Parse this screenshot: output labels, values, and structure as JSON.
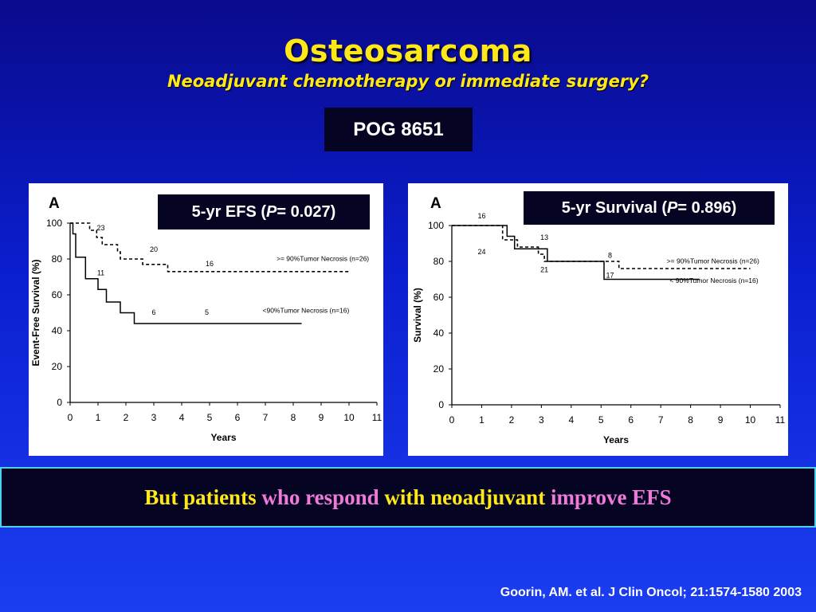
{
  "slide": {
    "title": "Osteosarcoma",
    "subtitle": "Neoadjuvant chemotherapy or immediate surgery?",
    "study_label": "POG 8651",
    "banner": {
      "part1": "But patients",
      "part2": "who respond",
      "part3": "with neoadjuvant",
      "part4": "improve EFS"
    },
    "citation": "Goorin, AM. et al. J Clin Oncol; 21:1574-1580 2003",
    "colors": {
      "title": "#ffe81a",
      "accent_pink": "#f07ad8",
      "background": "#0b1fd0"
    }
  },
  "chart_data": [
    {
      "type": "line",
      "panel_letter": "A",
      "stat_label": {
        "prefix": "5-yr EFS (",
        "p": "P",
        "suffix": " = 0.027)"
      },
      "xlabel": "Years",
      "ylabel": "Event-Free Survival (%)",
      "xlim": [
        0,
        11
      ],
      "ylim": [
        0,
        100
      ],
      "xticks": [
        "0",
        "1",
        "2",
        "3",
        "4",
        "5",
        "6",
        "7",
        "8",
        "9",
        "10",
        "11"
      ],
      "yticks": [
        "0",
        "20",
        "40",
        "60",
        "80",
        "100"
      ],
      "series": [
        {
          "name": ">= 90%Tumor Necrosis (n=26)",
          "style": "dashed",
          "x": [
            0,
            0.7,
            0.7,
            0.95,
            0.95,
            1.15,
            1.15,
            1.7,
            1.7,
            1.8,
            1.8,
            2.6,
            2.6,
            3.5,
            3.5,
            10.0
          ],
          "y": [
            100,
            100,
            96,
            96,
            92,
            92,
            88,
            88,
            84,
            84,
            80,
            80,
            77,
            77,
            73,
            73
          ]
        },
        {
          "name": "<90%Tumor Necrosis (n=16)",
          "style": "solid",
          "x": [
            0,
            0.1,
            0.1,
            0.2,
            0.2,
            0.55,
            0.55,
            1.0,
            1.0,
            1.3,
            1.3,
            1.8,
            1.8,
            2.3,
            2.3,
            8.3
          ],
          "y": [
            100,
            100,
            94,
            94,
            81,
            81,
            69,
            69,
            63,
            63,
            56,
            56,
            50,
            50,
            44,
            44
          ]
        }
      ],
      "annotations": [
        {
          "text": "23",
          "x": 1.1,
          "y": 96
        },
        {
          "text": "20",
          "x": 3.0,
          "y": 84
        },
        {
          "text": "16",
          "x": 5.0,
          "y": 76
        },
        {
          "text": "11",
          "x": 1.1,
          "y": 71
        },
        {
          "text": "6",
          "x": 3.0,
          "y": 49
        },
        {
          "text": "5",
          "x": 4.9,
          "y": 49
        }
      ],
      "legend": [
        {
          "text": ">= 90%Tumor Necrosis (n=26)",
          "x": 7.4,
          "y": 79
        },
        {
          "text": "<90%Tumor Necrosis (n=16)",
          "x": 6.9,
          "y": 50
        }
      ]
    },
    {
      "type": "line",
      "panel_letter": "A",
      "stat_label": {
        "prefix": "5-yr Survival (",
        "p": "P",
        "suffix": " = 0.896)"
      },
      "xlabel": "Years",
      "ylabel": "Survival (%)",
      "xlim": [
        0,
        11
      ],
      "ylim": [
        0,
        100
      ],
      "xticks": [
        "0",
        "1",
        "2",
        "3",
        "4",
        "5",
        "6",
        "7",
        "8",
        "9",
        "10",
        "11"
      ],
      "yticks": [
        "0",
        "20",
        "40",
        "60",
        "80",
        "100"
      ],
      "series": [
        {
          "name": ">= 90%Tumor Necrosis (n=26)",
          "style": "dashed",
          "x": [
            0,
            1.7,
            1.7,
            2.2,
            2.2,
            2.9,
            2.9,
            3.1,
            3.1,
            5.6,
            5.6,
            10.0
          ],
          "y": [
            100,
            100,
            92,
            92,
            88,
            88,
            84,
            84,
            80,
            80,
            76,
            76
          ]
        },
        {
          "name": "< 90%Tumor Necrosis (n=16)",
          "style": "solid",
          "x": [
            0,
            1.85,
            1.85,
            2.1,
            2.1,
            3.2,
            3.2,
            5.1,
            5.1,
            8.3
          ],
          "y": [
            100,
            100,
            94,
            94,
            87,
            87,
            80,
            80,
            70,
            70
          ]
        }
      ],
      "annotations": [
        {
          "text": "16",
          "x": 1.0,
          "y": 104
        },
        {
          "text": "24",
          "x": 1.0,
          "y": 84
        },
        {
          "text": "13",
          "x": 3.1,
          "y": 92
        },
        {
          "text": "21",
          "x": 3.1,
          "y": 74
        },
        {
          "text": "8",
          "x": 5.3,
          "y": 82
        },
        {
          "text": "17",
          "x": 5.3,
          "y": 71
        }
      ],
      "legend": [
        {
          "text": ">= 90%Tumor Necrosis (n=26)",
          "x": 7.2,
          "y": 79
        },
        {
          "text": "< 90%Tumor Necrosis (n=16)",
          "x": 7.3,
          "y": 68
        }
      ]
    }
  ]
}
